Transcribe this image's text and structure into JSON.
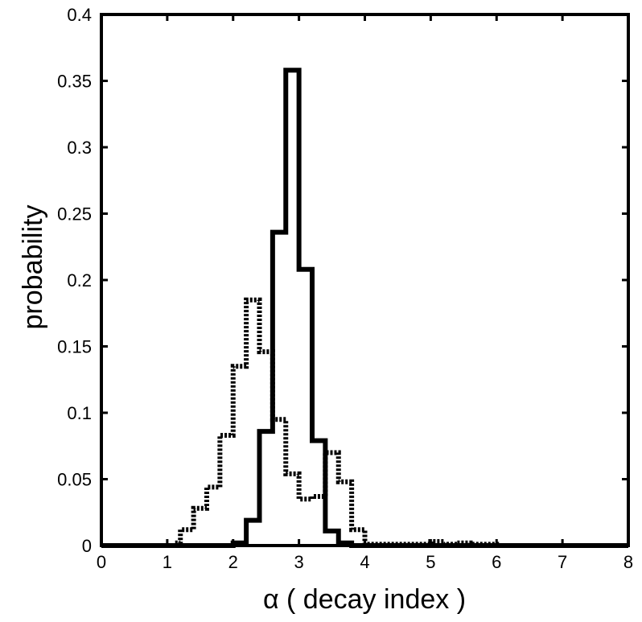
{
  "chart_data": {
    "type": "line",
    "step": true,
    "xlabel": "α ( decay index )",
    "ylabel": "probability",
    "xlim": [
      0,
      8
    ],
    "ylim": [
      0,
      0.4
    ],
    "xticks": [
      "0",
      "1",
      "2",
      "3",
      "4",
      "5",
      "6",
      "7",
      "8"
    ],
    "yticks": [
      "0",
      "0.05",
      "0.1",
      "0.15",
      "0.2",
      "0.25",
      "0.3",
      "0.35",
      "0.4"
    ],
    "grid": false,
    "legend": "none",
    "series": [
      {
        "style": "solid",
        "color": "#000000",
        "x": [
          0,
          2.0,
          2.2,
          2.4,
          2.6,
          2.8,
          3.0,
          3.2,
          3.4,
          3.6,
          3.8,
          8
        ],
        "y": [
          0,
          0.002,
          0.019,
          0.086,
          0.236,
          0.358,
          0.208,
          0.079,
          0.011,
          0.002,
          0,
          0
        ]
      },
      {
        "style": "dotted",
        "color": "#000000",
        "x": [
          0,
          1.1,
          1.2,
          1.4,
          1.6,
          1.8,
          2.0,
          2.2,
          2.4,
          2.6,
          2.8,
          3.0,
          3.2,
          3.4,
          3.6,
          3.8,
          4.0,
          4.5,
          5.0,
          5.2,
          5.4,
          5.6,
          6.0,
          8
        ],
        "y": [
          0,
          0.002,
          0.012,
          0.028,
          0.044,
          0.083,
          0.135,
          0.185,
          0.146,
          0.095,
          0.054,
          0.035,
          0.037,
          0.07,
          0.048,
          0.012,
          0.001,
          0.001,
          0.003,
          0.001,
          0.002,
          0.001,
          0,
          0
        ]
      }
    ]
  }
}
